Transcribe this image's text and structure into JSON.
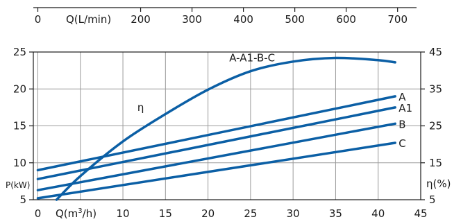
{
  "chart_data": {
    "type": "line",
    "top_axis": {
      "label": "Q(L/min)",
      "ticks": [
        0,
        200,
        300,
        400,
        500,
        600,
        700
      ],
      "range": [
        0,
        700
      ]
    },
    "x_axis": {
      "label_prefix": "Q(m",
      "label_sup": "3",
      "label_suffix": "/h)",
      "ticks": [
        0,
        10,
        15,
        20,
        25,
        30,
        35,
        40,
        45
      ],
      "range": [
        0,
        45
      ],
      "grid": [
        0,
        5,
        10,
        15,
        20,
        25,
        30,
        35,
        40,
        45
      ]
    },
    "y_left": {
      "label": "P(kW)",
      "ticks": [
        5,
        10,
        15,
        20,
        25
      ],
      "range": [
        5,
        25
      ]
    },
    "y_right": {
      "label": "η(%)",
      "ticks": [
        5,
        15,
        25,
        35,
        45
      ],
      "range": [
        5,
        45
      ]
    },
    "grid": true,
    "series": [
      {
        "name": "A",
        "axis": "left",
        "x": [
          0,
          42
        ],
        "y": [
          9.0,
          19.0
        ]
      },
      {
        "name": "A1",
        "axis": "left",
        "x": [
          0,
          42
        ],
        "y": [
          7.8,
          17.5
        ]
      },
      {
        "name": "B",
        "axis": "left",
        "x": [
          0,
          42
        ],
        "y": [
          6.3,
          15.3
        ]
      },
      {
        "name": "C",
        "axis": "left",
        "x": [
          0,
          42
        ],
        "y": [
          5.2,
          12.7
        ]
      },
      {
        "name": "η",
        "axis": "left",
        "x": [
          2.2,
          5,
          10,
          15,
          20,
          25,
          30,
          35,
          40,
          42
        ],
        "y": [
          5.0,
          8.2,
          12.9,
          16.6,
          19.9,
          22.4,
          23.7,
          24.2,
          23.9,
          23.6
        ]
      }
    ],
    "annotations": [
      {
        "text": "A-A1-B-C",
        "x": 22.5,
        "y": 24.2
      },
      {
        "text": "η",
        "x": 11.7,
        "y": 17.5
      }
    ]
  }
}
